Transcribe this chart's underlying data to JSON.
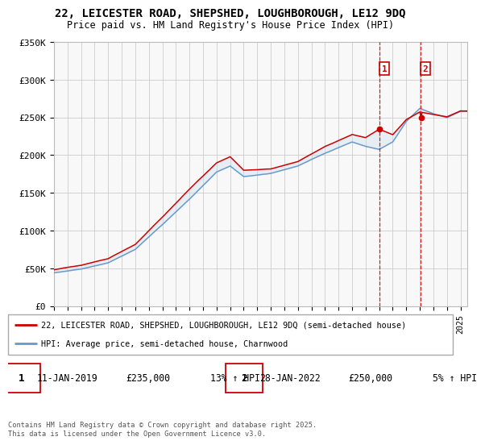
{
  "title_line1": "22, LEICESTER ROAD, SHEPSHED, LOUGHBOROUGH, LE12 9DQ",
  "title_line2": "Price paid vs. HM Land Registry's House Price Index (HPI)",
  "ylabel_ticks": [
    "£0",
    "£50K",
    "£100K",
    "£150K",
    "£200K",
    "£250K",
    "£300K",
    "£350K"
  ],
  "y_values": [
    0,
    50000,
    100000,
    150000,
    200000,
    250000,
    300000,
    350000
  ],
  "ylim": [
    0,
    350000
  ],
  "year_start": 1995,
  "year_end": 2025,
  "legend_line1": "22, LEICESTER ROAD, SHEPSHED, LOUGHBOROUGH, LE12 9DQ (semi-detached house)",
  "legend_line2": "HPI: Average price, semi-detached house, Charnwood",
  "sale1_label": "1",
  "sale1_date": "11-JAN-2019",
  "sale1_price": "£235,000",
  "sale1_hpi": "13% ↑ HPI",
  "sale1_year": 2019.04,
  "sale1_value": 235000,
  "sale2_label": "2",
  "sale2_date": "28-JAN-2022",
  "sale2_price": "£250,000",
  "sale2_hpi": "5% ↑ HPI",
  "sale2_year": 2022.07,
  "sale2_value": 250000,
  "color_property": "#cc0000",
  "color_hpi": "#6699cc",
  "color_vline": "#cc0000",
  "color_shade": "#cce0f0",
  "footer": "Contains HM Land Registry data © Crown copyright and database right 2025.\nThis data is licensed under the Open Government Licence v3.0.",
  "background_color": "#f8f8f8",
  "hpi_knots_x": [
    1995,
    1997,
    1999,
    2001,
    2003,
    2005,
    2007,
    2008,
    2009,
    2011,
    2013,
    2015,
    2017,
    2018,
    2019,
    2020,
    2021,
    2022,
    2023,
    2024,
    2025
  ],
  "hpi_knots_y": [
    44000,
    49000,
    57000,
    75000,
    108000,
    142000,
    178000,
    186000,
    172000,
    176000,
    186000,
    203000,
    218000,
    212000,
    208000,
    218000,
    245000,
    262000,
    255000,
    250000,
    258000
  ],
  "prop_knots_x": [
    1995,
    1997,
    1999,
    2001,
    2003,
    2005,
    2007,
    2008,
    2009,
    2011,
    2013,
    2015,
    2017,
    2018,
    2019,
    2020,
    2021,
    2022,
    2023,
    2024,
    2025
  ],
  "prop_knots_y": [
    48000,
    54000,
    63000,
    82000,
    118000,
    155000,
    190000,
    198000,
    180000,
    182000,
    192000,
    212000,
    228000,
    224000,
    235000,
    228000,
    248000,
    258000,
    255000,
    252000,
    260000
  ]
}
